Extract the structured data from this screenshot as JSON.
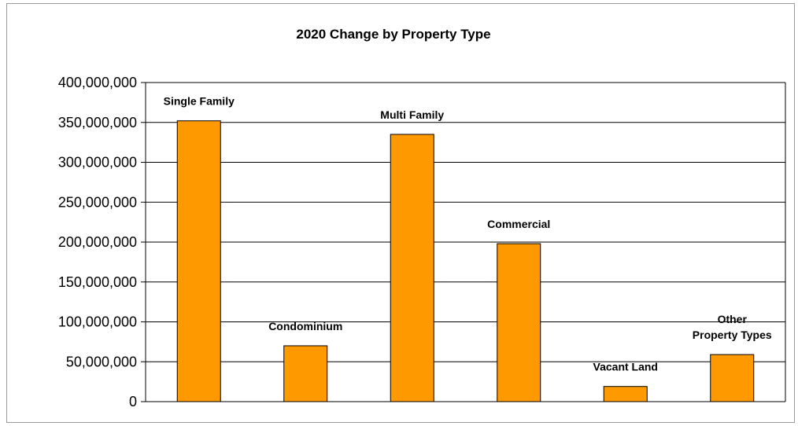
{
  "chart_data": {
    "type": "bar",
    "title": "2020 Change by Property Type",
    "xlabel": "",
    "ylabel": "",
    "categories": [
      "Single Family",
      "Condominium",
      "Multi Family",
      "Commercial",
      "Vacant Land",
      "Other Property Types"
    ],
    "category_label_lines": [
      [
        "Single Family"
      ],
      [
        "Condominium"
      ],
      [
        "Multi Family"
      ],
      [
        "Commercial"
      ],
      [
        "Vacant Land"
      ],
      [
        "Other",
        "Property Types"
      ]
    ],
    "values": [
      352000000,
      70000000,
      335000000,
      198000000,
      19000000,
      59000000
    ],
    "ylim": [
      0,
      400000000
    ],
    "yticks": [
      0,
      50000000,
      100000000,
      150000000,
      200000000,
      250000000,
      300000000,
      350000000,
      400000000
    ],
    "ytick_labels": [
      "0",
      "50,000,000",
      "100,000,000",
      "150,000,000",
      "200,000,000",
      "250,000,000",
      "300,000,000",
      "350,000,000",
      "400,000,000"
    ],
    "grid": true,
    "legend": false,
    "bar_color": "#FF9900"
  }
}
